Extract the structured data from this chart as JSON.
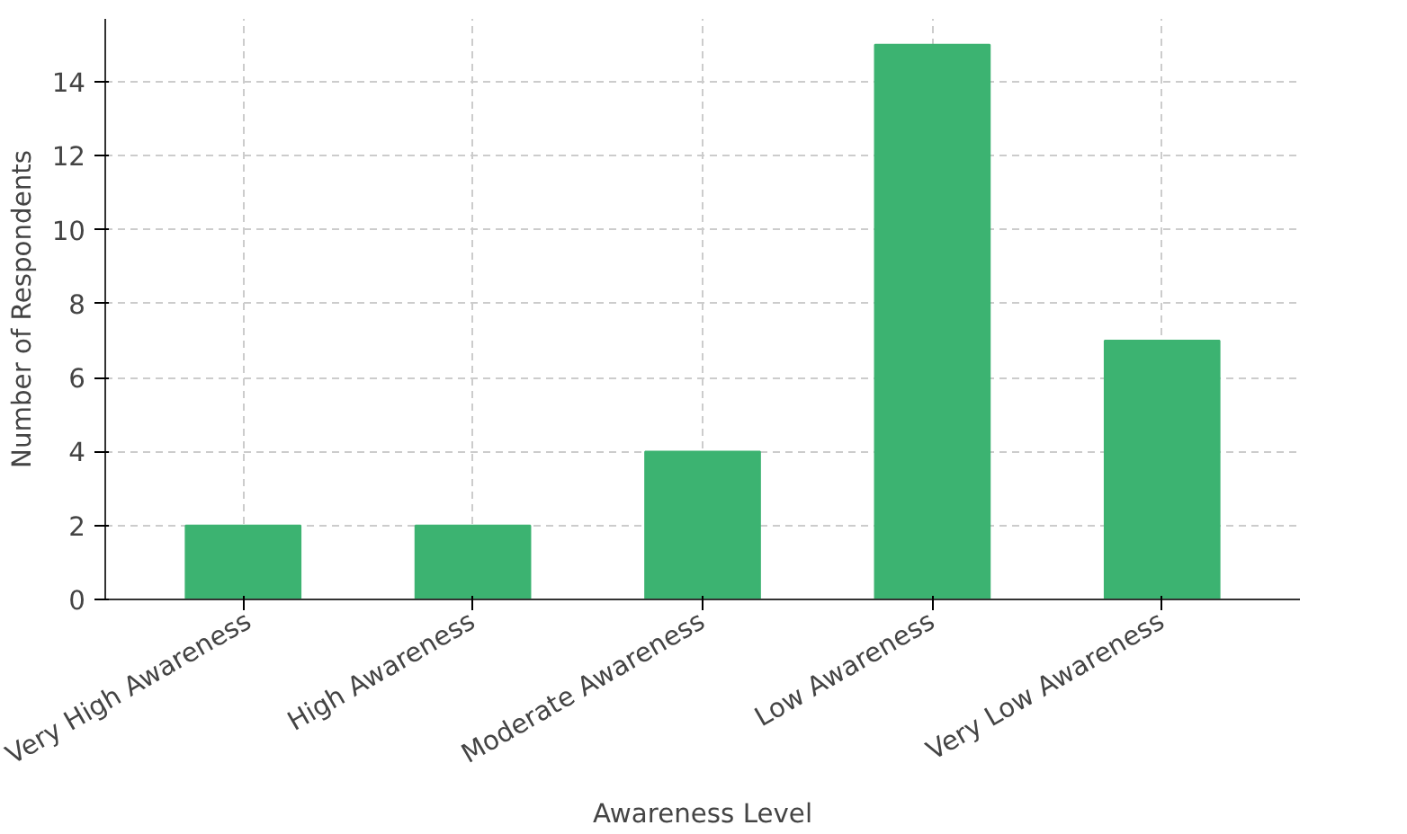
{
  "chart_data": {
    "type": "bar",
    "xlabel": "Awareness Level",
    "ylabel": "Number of Respondents",
    "categories": [
      "Very High Awareness",
      "High Awareness",
      "Moderate Awareness",
      "Low Awareness",
      "Very Low Awareness"
    ],
    "values": [
      2,
      2,
      4,
      15,
      7
    ],
    "color": "#3cb371",
    "ylim": [
      0,
      15.7
    ],
    "yticks": [
      0,
      2,
      4,
      6,
      8,
      10,
      12,
      14
    ],
    "grid": true
  }
}
